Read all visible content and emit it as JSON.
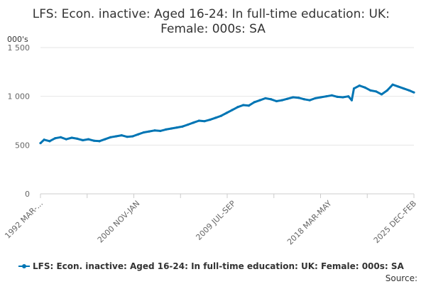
{
  "chart_data": {
    "type": "line",
    "title": "LFS: Econ. inactive: Aged 16-24: In full-time education: UK: Female: 000s: SA",
    "title_lines": [
      "LFS: Econ. inactive: Aged 16-24: In full-time education: UK:",
      "Female: 000s: SA"
    ],
    "y_unit": "000's",
    "ylim": [
      0,
      1500
    ],
    "y_ticks": [
      {
        "value": 0,
        "label": "0"
      },
      {
        "value": 500,
        "label": "500"
      },
      {
        "value": 1000,
        "label": "1 000"
      },
      {
        "value": 1500,
        "label": "1 500"
      }
    ],
    "x_tick_labels": [
      "1992 MAR-...",
      "2000 NOV-JAN",
      "2009 JUL-SEP",
      "2018 MAR-MAY",
      "2025 DEC-FEB"
    ],
    "x_tick_positions": [
      1992.17,
      2000.92,
      2009.58,
      2018.25,
      2025.92
    ],
    "grid": true,
    "color": "#0075b4",
    "legend_position": "bottom",
    "series": [
      {
        "name": "LFS: Econ. inactive: Aged 16-24: In full-time education: UK: Female: 000s: SA",
        "x": [
          1992.17,
          1992.5,
          1993.0,
          1993.5,
          1994.0,
          1994.5,
          1995.0,
          1995.5,
          1996.0,
          1996.5,
          1997.0,
          1997.5,
          1998.0,
          1998.5,
          1999.0,
          1999.5,
          2000.0,
          2000.5,
          2001.0,
          2001.5,
          2002.0,
          2002.5,
          2003.0,
          2003.5,
          2004.0,
          2004.5,
          2005.0,
          2005.5,
          2006.0,
          2006.5,
          2007.0,
          2007.5,
          2008.0,
          2008.5,
          2009.0,
          2009.5,
          2010.0,
          2010.5,
          2011.0,
          2011.5,
          2012.0,
          2012.5,
          2013.0,
          2013.5,
          2014.0,
          2014.5,
          2015.0,
          2015.5,
          2016.0,
          2016.5,
          2017.0,
          2017.5,
          2018.0,
          2018.5,
          2019.0,
          2019.5,
          2020.0,
          2020.3,
          2020.5,
          2021.0,
          2021.5,
          2022.0,
          2022.5,
          2023.0,
          2023.5,
          2024.0,
          2024.5,
          2025.0,
          2025.5,
          2025.92
        ],
        "values": [
          520,
          555,
          540,
          570,
          580,
          560,
          575,
          565,
          550,
          560,
          545,
          540,
          560,
          580,
          590,
          600,
          585,
          590,
          610,
          630,
          640,
          650,
          645,
          660,
          670,
          680,
          690,
          710,
          730,
          750,
          745,
          760,
          780,
          800,
          830,
          860,
          890,
          910,
          905,
          940,
          960,
          980,
          970,
          950,
          960,
          975,
          990,
          985,
          970,
          960,
          980,
          990,
          1000,
          1010,
          995,
          990,
          1000,
          960,
          1080,
          1110,
          1090,
          1060,
          1050,
          1020,
          1060,
          1120,
          1100,
          1080,
          1060,
          1040
        ]
      }
    ]
  },
  "source_label": "Source:"
}
